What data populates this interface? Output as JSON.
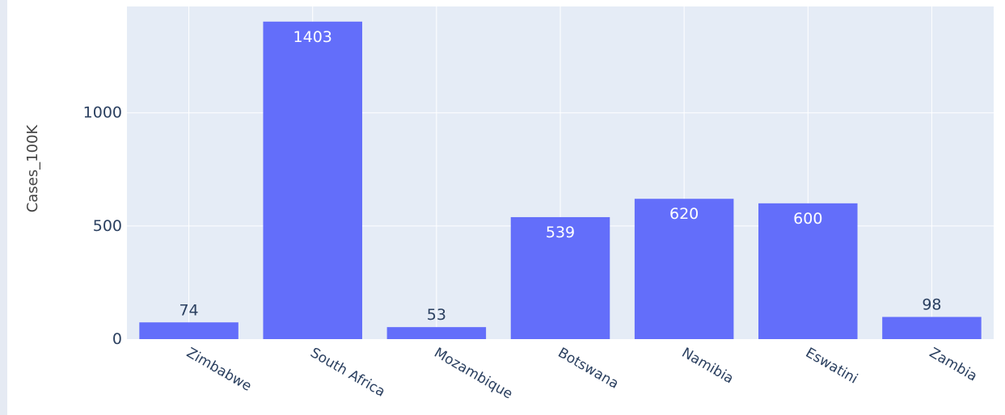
{
  "chart_data": {
    "type": "bar",
    "categories": [
      "Zimbabwe",
      "South Africa",
      "Mozambique",
      "Botswana",
      "Namibia",
      "Eswatini",
      "Zambia"
    ],
    "values": [
      74,
      1403,
      53,
      539,
      620,
      600,
      98
    ],
    "data_labels": [
      "74",
      "1403",
      "53",
      "539",
      "620",
      "600",
      "98"
    ],
    "title": "",
    "xlabel": "",
    "ylabel": "Cases_100K",
    "ylim": [
      0,
      1470
    ],
    "yticks": [
      0,
      500,
      1000
    ],
    "ytick_labels": [
      "0",
      "500",
      "1000"
    ],
    "grid": true,
    "legend": "none",
    "colors": {
      "bar": "#636efa",
      "plot_bg": "#e5ecf6",
      "grid": "#ffffff",
      "label_inside": "#ffffff",
      "label_outside": "#2a3f5f",
      "tick_text": "#2a3f5f",
      "axis_title": "#444444"
    }
  }
}
